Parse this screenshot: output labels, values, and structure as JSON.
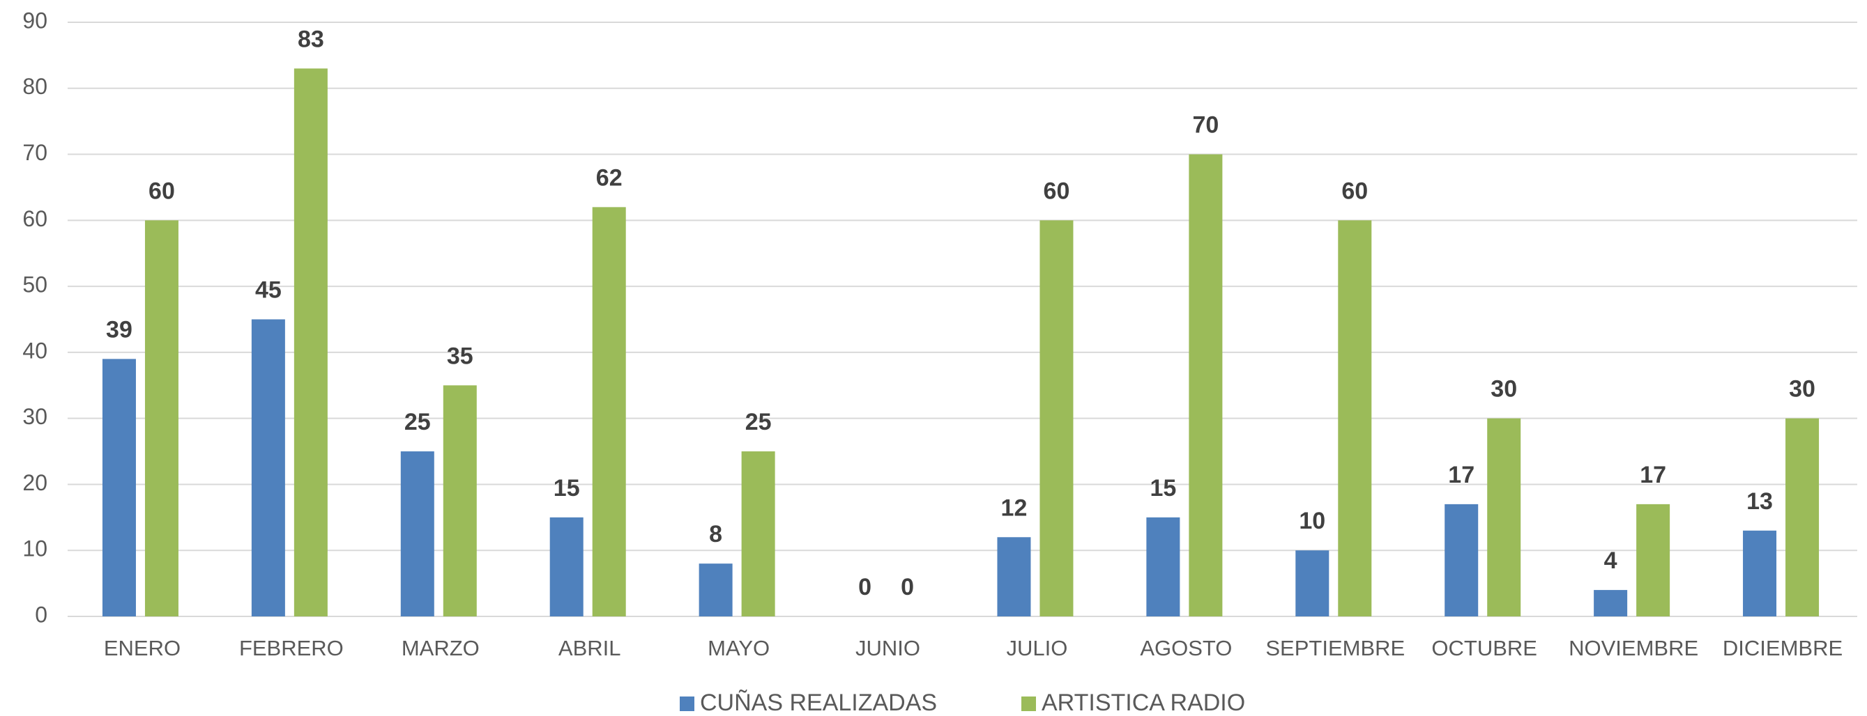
{
  "chart_data": {
    "type": "bar",
    "categories": [
      "ENERO",
      "FEBRERO",
      "MARZO",
      "ABRIL",
      "MAYO",
      "JUNIO",
      "JULIO",
      "AGOSTO",
      "SEPTIEMBRE",
      "OCTUBRE",
      "NOVIEMBRE",
      "DICIEMBRE"
    ],
    "series": [
      {
        "name": "CUÑAS REALIZADAS",
        "color": "#4f81bd",
        "values": [
          39,
          45,
          25,
          15,
          8,
          0,
          12,
          15,
          10,
          17,
          4,
          13
        ]
      },
      {
        "name": "ARTISTICA RADIO",
        "color": "#9bbb59",
        "values": [
          60,
          83,
          35,
          62,
          25,
          0,
          60,
          70,
          60,
          30,
          17,
          30
        ]
      }
    ],
    "ylim": [
      0,
      90
    ],
    "yticks": [
      0,
      10,
      20,
      30,
      40,
      50,
      60,
      70,
      80,
      90
    ],
    "grid": true,
    "legend": "bottom"
  }
}
